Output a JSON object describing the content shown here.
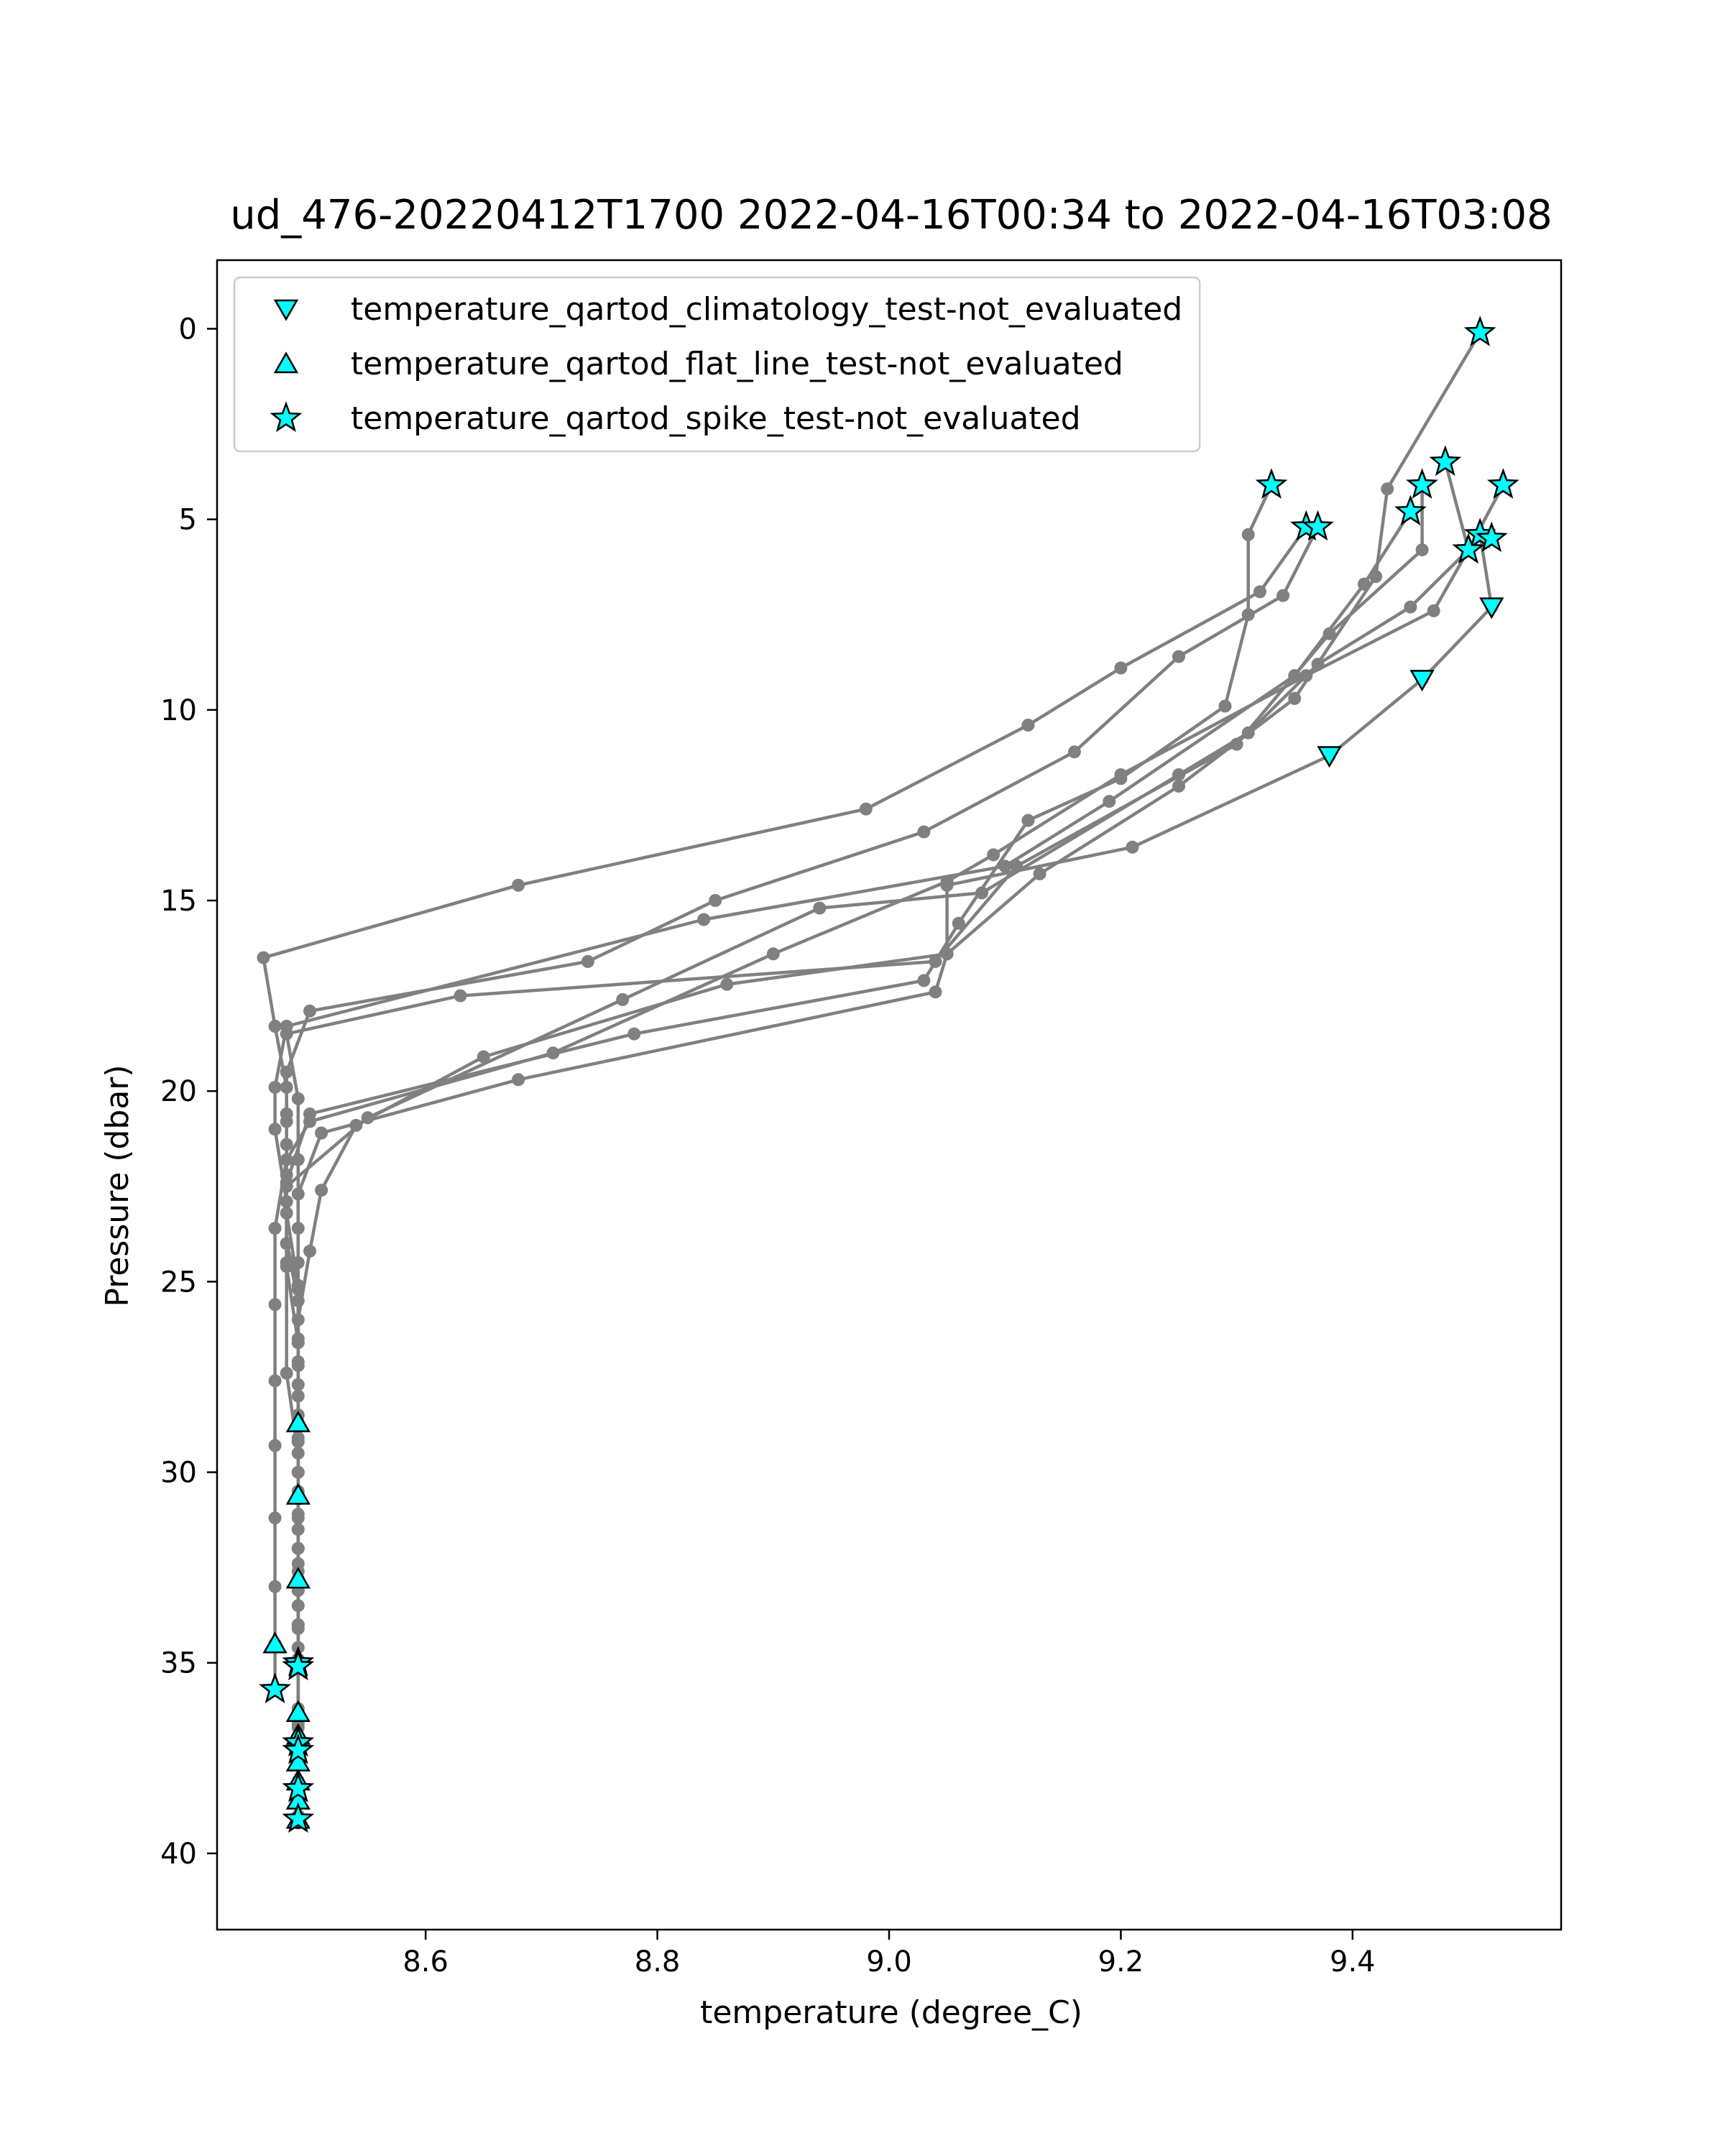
{
  "chart_data": {
    "type": "scatter",
    "title": "ud_476-20220412T1700 2022-04-16T00:34 to 2022-04-16T03:08",
    "xlabel": "temperature (degree_C)",
    "ylabel": "Pressure (dbar)",
    "xlim": [
      8.42,
      9.58
    ],
    "ylim": [
      42.0,
      -1.8
    ],
    "y_inverted": true,
    "xticks": [
      "8.6",
      "8.8",
      "9.0",
      "9.2",
      "9.4"
    ],
    "yticks": [
      "0",
      "5",
      "10",
      "15",
      "20",
      "25",
      "30",
      "35",
      "40"
    ],
    "grid": false,
    "legend_position": "upper-left",
    "colors": {
      "profile_line": "#808080",
      "marker_fill": "#00ffff",
      "marker_edge": "#000000"
    },
    "legend": [
      {
        "label": "temperature_qartod_climatology_test-not_evaluated",
        "marker": "triangle-down"
      },
      {
        "label": "temperature_qartod_flat_line_test-not_evaluated",
        "marker": "triangle-up"
      },
      {
        "label": "temperature_qartod_spike_test-not_evaluated",
        "marker": "star"
      }
    ],
    "profiles": [
      [
        [
          9.51,
          0.1
        ],
        [
          9.43,
          4.2
        ],
        [
          9.42,
          6.5
        ],
        [
          9.35,
          9.7
        ],
        [
          9.25,
          12.0
        ],
        [
          9.13,
          14.3
        ],
        [
          9.05,
          16.4
        ],
        [
          8.86,
          17.2
        ],
        [
          8.65,
          19.1
        ],
        [
          8.54,
          20.9
        ],
        [
          8.51,
          22.6
        ],
        [
          8.5,
          24.2
        ],
        [
          8.49,
          26.0
        ],
        [
          8.49,
          28.0
        ],
        [
          8.49,
          30.0
        ],
        [
          8.49,
          32.0
        ],
        [
          8.49,
          34.0
        ],
        [
          8.49,
          35.1
        ]
      ],
      [
        [
          9.53,
          4.1
        ],
        [
          9.5,
          5.8
        ],
        [
          9.47,
          7.4
        ],
        [
          9.36,
          9.1
        ],
        [
          9.2,
          11.7
        ],
        [
          9.09,
          13.8
        ],
        [
          9.05,
          14.5
        ],
        [
          8.9,
          16.4
        ],
        [
          8.71,
          19.0
        ],
        [
          8.5,
          20.8
        ],
        [
          8.48,
          21.8
        ],
        [
          8.47,
          23.6
        ],
        [
          8.47,
          25.6
        ],
        [
          8.47,
          27.6
        ],
        [
          8.47,
          29.3
        ],
        [
          8.47,
          31.2
        ],
        [
          8.47,
          33.0
        ],
        [
          8.47,
          34.5
        ],
        [
          8.47,
          35.7
        ]
      ],
      [
        [
          9.48,
          3.5
        ],
        [
          9.5,
          5.8
        ],
        [
          9.45,
          7.3
        ],
        [
          9.37,
          8.8
        ],
        [
          9.31,
          10.6
        ],
        [
          9.25,
          11.7
        ],
        [
          9.08,
          14.8
        ],
        [
          8.94,
          15.2
        ],
        [
          8.77,
          17.6
        ],
        [
          8.55,
          20.7
        ],
        [
          8.48,
          22.5
        ],
        [
          8.48,
          24.5
        ],
        [
          8.48,
          27.4
        ],
        [
          8.49,
          29.5
        ],
        [
          8.49,
          31.5
        ],
        [
          8.49,
          33.5
        ],
        [
          8.49,
          35.0
        ],
        [
          8.49,
          36.3
        ]
      ],
      [
        [
          9.33,
          4.1
        ],
        [
          9.31,
          5.4
        ],
        [
          9.31,
          7.5
        ],
        [
          9.29,
          9.9
        ],
        [
          9.2,
          11.8
        ],
        [
          9.12,
          12.9
        ],
        [
          9.06,
          15.6
        ],
        [
          9.03,
          17.1
        ],
        [
          8.78,
          18.5
        ],
        [
          8.5,
          20.6
        ],
        [
          8.48,
          22.4
        ],
        [
          8.48,
          24.6
        ],
        [
          8.49,
          26.6
        ],
        [
          8.49,
          28.5
        ],
        [
          8.49,
          30.5
        ],
        [
          8.49,
          32.4
        ],
        [
          8.49,
          34.1
        ],
        [
          8.49,
          36.4
        ],
        [
          8.49,
          37.1
        ]
      ],
      [
        [
          9.45,
          4.8
        ],
        [
          9.41,
          6.7
        ],
        [
          9.35,
          9.1
        ],
        [
          9.19,
          12.4
        ],
        [
          9.1,
          14.1
        ],
        [
          8.84,
          15.5
        ],
        [
          8.48,
          18.3
        ],
        [
          8.47,
          19.9
        ],
        [
          8.47,
          21.0
        ],
        [
          8.48,
          22.9
        ],
        [
          8.48,
          24.0
        ],
        [
          8.49,
          25.1
        ],
        [
          8.49,
          26.6
        ],
        [
          8.49,
          28.7
        ],
        [
          8.49,
          30.7
        ],
        [
          8.49,
          32.8
        ],
        [
          8.49,
          34.9
        ],
        [
          8.49,
          36.6
        ],
        [
          8.49,
          37.6
        ]
      ],
      [
        [
          9.46,
          4.1
        ],
        [
          9.46,
          5.8
        ],
        [
          9.38,
          8.0
        ],
        [
          9.3,
          10.9
        ],
        [
          9.11,
          14.1
        ],
        [
          9.04,
          16.6
        ],
        [
          8.63,
          17.5
        ],
        [
          8.48,
          18.5
        ],
        [
          8.49,
          20.2
        ],
        [
          8.49,
          21.8
        ],
        [
          8.49,
          23.6
        ],
        [
          8.49,
          25.2
        ],
        [
          8.49,
          27.2
        ],
        [
          8.49,
          29.2
        ],
        [
          8.49,
          31.2
        ],
        [
          8.49,
          33.1
        ],
        [
          8.49,
          35.0
        ],
        [
          8.49,
          37.2
        ],
        [
          8.49,
          38.3
        ]
      ],
      [
        [
          9.37,
          5.2
        ],
        [
          9.34,
          7.0
        ],
        [
          9.25,
          8.6
        ],
        [
          9.16,
          11.1
        ],
        [
          9.03,
          13.2
        ],
        [
          8.85,
          15.0
        ],
        [
          8.74,
          16.6
        ],
        [
          8.5,
          17.9
        ],
        [
          8.48,
          19.5
        ],
        [
          8.48,
          20.8
        ],
        [
          8.48,
          22.2
        ],
        [
          8.48,
          24.0
        ],
        [
          8.49,
          25.5
        ],
        [
          8.49,
          27.7
        ],
        [
          8.49,
          30.0
        ],
        [
          8.49,
          32.0
        ],
        [
          8.49,
          34.0
        ],
        [
          8.49,
          36.2
        ],
        [
          8.49,
          38.3
        ],
        [
          8.49,
          39.1
        ]
      ],
      [
        [
          9.36,
          5.2
        ],
        [
          9.32,
          6.9
        ],
        [
          9.2,
          8.9
        ],
        [
          9.12,
          10.4
        ],
        [
          8.98,
          12.6
        ],
        [
          8.68,
          14.6
        ],
        [
          8.46,
          16.5
        ],
        [
          8.47,
          18.3
        ],
        [
          8.48,
          19.9
        ],
        [
          8.48,
          20.6
        ],
        [
          8.48,
          21.4
        ],
        [
          8.48,
          23.2
        ],
        [
          8.49,
          25.1
        ],
        [
          8.49,
          27.1
        ],
        [
          8.49,
          29.1
        ],
        [
          8.49,
          31.1
        ],
        [
          8.49,
          33.1
        ],
        [
          8.49,
          35.1
        ],
        [
          8.49,
          37.3
        ],
        [
          8.49,
          38.6
        ],
        [
          8.49,
          39.2
        ]
      ],
      [
        [
          9.51,
          5.4
        ],
        [
          9.52,
          7.3
        ],
        [
          9.46,
          9.2
        ],
        [
          9.38,
          11.2
        ],
        [
          9.21,
          13.6
        ],
        [
          9.05,
          14.6
        ],
        [
          9.05,
          16.4
        ],
        [
          9.04,
          17.4
        ],
        [
          8.68,
          19.7
        ],
        [
          8.51,
          21.1
        ],
        [
          8.49,
          22.7
        ],
        [
          8.49,
          24.5
        ],
        [
          8.49,
          26.5
        ],
        [
          8.49,
          28.5
        ],
        [
          8.49,
          30.6
        ],
        [
          8.49,
          32.6
        ],
        [
          8.49,
          34.6
        ],
        [
          8.49,
          36.7
        ],
        [
          8.49,
          38.1
        ],
        [
          8.49,
          39.0
        ]
      ]
    ],
    "climatology_not_evaluated": [
      [
        9.52,
        7.3
      ],
      [
        9.46,
        9.2
      ],
      [
        9.38,
        11.2
      ]
    ],
    "flat_line_not_evaluated": [
      [
        8.49,
        28.7
      ],
      [
        8.49,
        30.6
      ],
      [
        8.49,
        32.8
      ],
      [
        8.47,
        34.5
      ],
      [
        8.49,
        36.3
      ],
      [
        8.49,
        36.9
      ],
      [
        8.49,
        37.6
      ],
      [
        8.49,
        38.1
      ],
      [
        8.49,
        38.6
      ],
      [
        8.49,
        39.1
      ]
    ],
    "spike_not_evaluated": [
      [
        9.51,
        0.1
      ],
      [
        9.48,
        3.5
      ],
      [
        9.33,
        4.1
      ],
      [
        9.46,
        4.1
      ],
      [
        9.53,
        4.1
      ],
      [
        9.45,
        4.8
      ],
      [
        9.36,
        5.2
      ],
      [
        9.37,
        5.2
      ],
      [
        9.51,
        5.4
      ],
      [
        9.52,
        5.5
      ],
      [
        9.5,
        5.8
      ],
      [
        9.5,
        5.8
      ],
      [
        8.49,
        35.0
      ],
      [
        8.49,
        35.1
      ],
      [
        8.47,
        35.7
      ],
      [
        8.49,
        37.1
      ],
      [
        8.49,
        37.3
      ],
      [
        8.49,
        38.3
      ],
      [
        8.49,
        39.1
      ]
    ]
  }
}
